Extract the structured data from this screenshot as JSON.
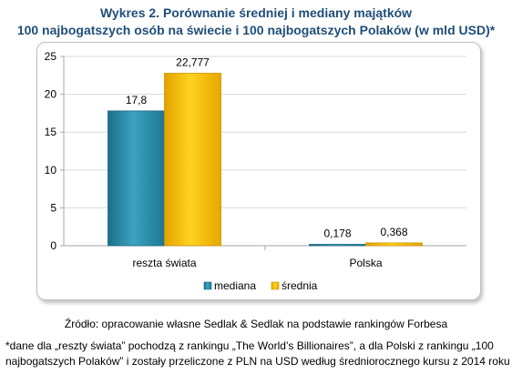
{
  "title_line1": "Wykres 2. Porównanie średniej i mediany majątków",
  "title_line2": "100 najbogatszych osób na świecie i 100 najbogatszych Polaków (w mld USD)*",
  "source": "Źródło: opracowanie własne Sedlak & Sedlak na podstawie rankingów Forbesa",
  "note_line1": "*dane dla „reszty świata”  pochodzą  z rankingu „The World’s Billionaires”, a dla Polski z rankingu „100",
  "note_line2": "najbogatszych  Polaków”  i zostały przeliczone z PLN na USD według średniorocznego kursu z 2014 roku",
  "colors": {
    "mediana": "#2e93b0",
    "srednia": "#f5b800",
    "grid": "#d9d9d9",
    "title": "#1f4e79"
  },
  "chart_data": {
    "type": "bar",
    "categories": [
      "reszta świata",
      "Polska"
    ],
    "series": [
      {
        "name": "mediana",
        "values": [
          17.8,
          0.178
        ],
        "labels": [
          "17,8",
          "0,178"
        ]
      },
      {
        "name": "średnia",
        "values": [
          22.777,
          0.368
        ],
        "labels": [
          "22,777",
          "0,368"
        ]
      }
    ],
    "ylim": [
      0,
      25
    ],
    "yticks": [
      0,
      5,
      10,
      15,
      20,
      25
    ],
    "grid": true,
    "legend": "bottom"
  }
}
